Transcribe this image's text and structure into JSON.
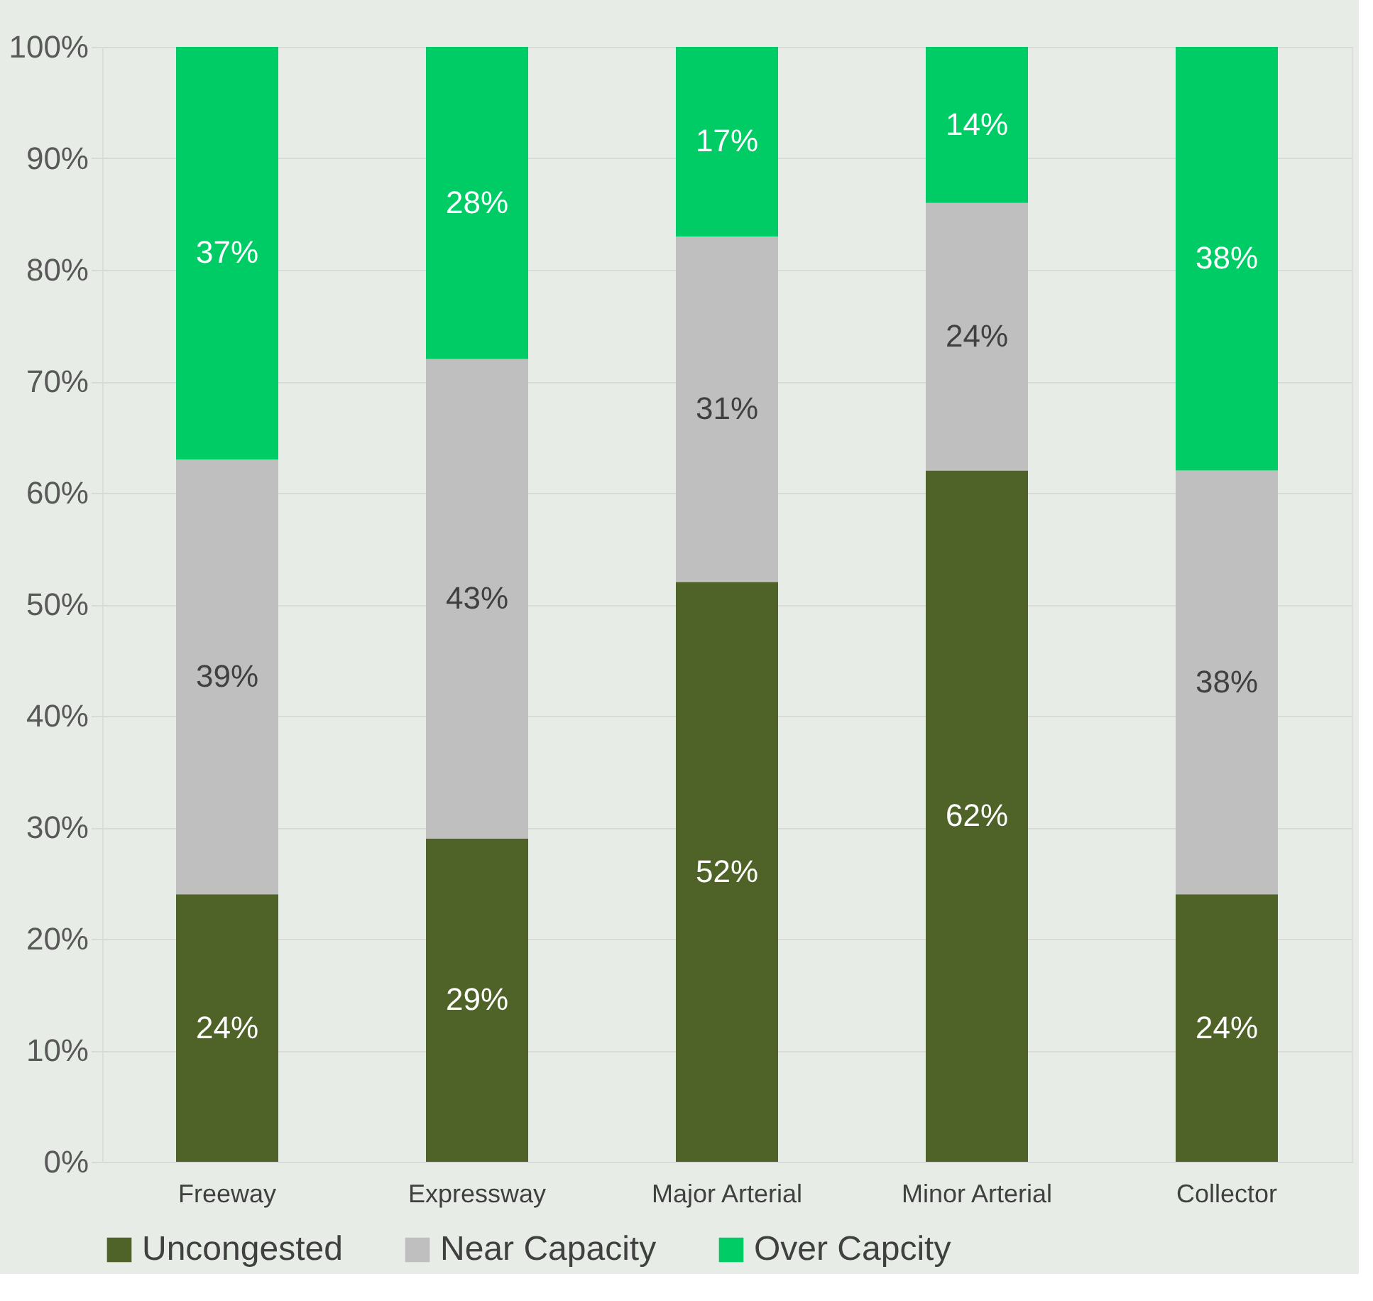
{
  "chart_data": {
    "type": "bar",
    "stacked": true,
    "categories": [
      "Freeway",
      "Expressway",
      "Major Arterial",
      "Minor Arterial",
      "Collector"
    ],
    "series": [
      {
        "name": "Uncongested",
        "color": "#4f6228",
        "values": [
          24,
          29,
          52,
          62,
          24
        ],
        "value_labels": [
          "24%",
          "29%",
          "52%",
          "62%",
          "24%"
        ]
      },
      {
        "name": "Near Capacity",
        "color": "#bfbfbf",
        "values": [
          39,
          43,
          31,
          24,
          38
        ],
        "value_labels": [
          "39%",
          "43%",
          "31%",
          "24%",
          "38%"
        ]
      },
      {
        "name": "Over Capcity",
        "color": "#00cc66",
        "values": [
          37,
          28,
          17,
          14,
          38
        ],
        "value_labels": [
          "37%",
          "28%",
          "17%",
          "14%",
          "38%"
        ]
      }
    ],
    "ylim": [
      0,
      100
    ],
    "yticks": [
      {
        "value": 0,
        "label": "0%"
      },
      {
        "value": 10,
        "label": "10%"
      },
      {
        "value": 20,
        "label": "20%"
      },
      {
        "value": 30,
        "label": "30%"
      },
      {
        "value": 40,
        "label": "40%"
      },
      {
        "value": 50,
        "label": "50%"
      },
      {
        "value": 60,
        "label": "60%"
      },
      {
        "value": 70,
        "label": "70%"
      },
      {
        "value": 80,
        "label": "80%"
      },
      {
        "value": 90,
        "label": "90%"
      },
      {
        "value": 100,
        "label": "100%"
      }
    ],
    "grid": "y",
    "legend": "bottom"
  }
}
